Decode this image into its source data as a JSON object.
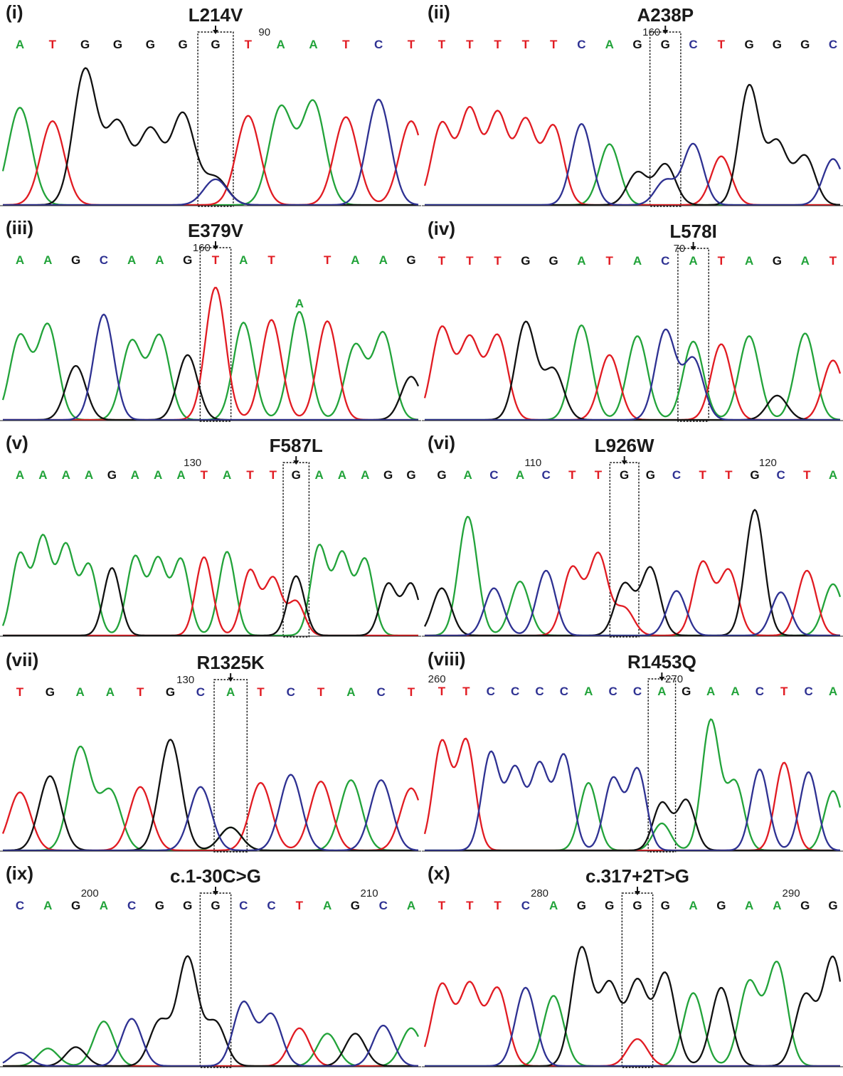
{
  "colors": {
    "A": "#22a33a",
    "T": "#e11b22",
    "G": "#111111",
    "C": "#2e3192"
  },
  "panels": [
    {
      "label": "(i)",
      "mutation": "L214V",
      "bases": [
        "A",
        "T",
        "G",
        "G",
        "G",
        "G",
        "G",
        "T",
        "A",
        "A",
        "T",
        "C",
        "T"
      ],
      "highlight": 6,
      "positions": [
        {
          "after": 7,
          "text": "90"
        }
      ],
      "heights": [
        0.72,
        0.62,
        1.0,
        0.6,
        0.55,
        0.67,
        0.2,
        0.66,
        0.72,
        0.76,
        0.65,
        0.78,
        0.62
      ],
      "secondary": [
        {
          "index": 6,
          "base": "C",
          "height": 0.19
        }
      ]
    },
    {
      "label": "(ii)",
      "mutation": "A238P",
      "bases": [
        "T",
        "T",
        "T",
        "T",
        "T",
        "C",
        "A",
        "G",
        "G",
        "C",
        "T",
        "G",
        "G",
        "G",
        "C"
      ],
      "highlight": 8,
      "positions": [
        {
          "after": 7,
          "text": "160"
        }
      ],
      "heights": [
        0.6,
        0.7,
        0.67,
        0.62,
        0.58,
        0.6,
        0.45,
        0.24,
        0.3,
        0.45,
        0.36,
        0.88,
        0.46,
        0.36,
        0.34
      ],
      "secondary": [
        {
          "index": 8,
          "base": "C",
          "height": 0.18
        }
      ]
    },
    {
      "label": "(iii)",
      "mutation": "E379V",
      "bases": [
        "A",
        "A",
        "G",
        "C",
        "A",
        "A",
        "G",
        "T",
        "A",
        "T",
        "",
        "T",
        "A",
        "A",
        "G"
      ],
      "highlight": 7,
      "positions": [
        {
          "after": 6,
          "text": "160"
        }
      ],
      "heights": [
        0.62,
        0.7,
        0.4,
        0.78,
        0.58,
        0.62,
        0.48,
        0.62,
        0.72,
        0.74,
        0,
        0.73,
        0.55,
        0.64,
        0.32
      ],
      "secondary": [
        {
          "index": 7,
          "base": "T",
          "height": 0.36
        }
      ],
      "extraCall": {
        "index": 10,
        "base": "A",
        "height": 0.8
      }
    },
    {
      "label": "(iv)",
      "mutation": "L578I",
      "bases": [
        "T",
        "T",
        "T",
        "G",
        "G",
        "A",
        "T",
        "A",
        "C",
        "A",
        "T",
        "A",
        "G",
        "A",
        "T"
      ],
      "highlight": 9,
      "positions": [
        {
          "after": 8,
          "text": "70"
        }
      ],
      "heights": [
        0.68,
        0.6,
        0.62,
        0.72,
        0.37,
        0.7,
        0.48,
        0.62,
        0.66,
        0.58,
        0.56,
        0.62,
        0.18,
        0.64,
        0.44
      ],
      "secondary": [
        {
          "index": 9,
          "base": "C",
          "height": 0.45
        }
      ]
    },
    {
      "label": "(v)",
      "mutation": "F587L",
      "bases": [
        "A",
        "A",
        "A",
        "A",
        "G",
        "A",
        "A",
        "A",
        "T",
        "A",
        "T",
        "T",
        "G",
        "A",
        "A",
        "A",
        "G",
        "G"
      ],
      "highlight": 12,
      "positions": [
        {
          "after": 7,
          "text": "130"
        }
      ],
      "heights": [
        0.6,
        0.72,
        0.66,
        0.52,
        0.5,
        0.58,
        0.56,
        0.56,
        0.58,
        0.62,
        0.48,
        0.42,
        0.44,
        0.66,
        0.6,
        0.56,
        0.38,
        0.38
      ],
      "secondary": [
        {
          "index": 12,
          "base": "T",
          "height": 0.25
        }
      ]
    },
    {
      "label": "(vi)",
      "mutation": "L926W",
      "bases": [
        "G",
        "A",
        "C",
        "A",
        "C",
        "T",
        "T",
        "G",
        "G",
        "C",
        "T",
        "T",
        "G",
        "C",
        "T",
        "A"
      ],
      "highlight": 7,
      "positions": [
        {
          "after": 3,
          "text": "110"
        },
        {
          "after": 12,
          "text": "120"
        }
      ],
      "heights": [
        0.35,
        0.88,
        0.35,
        0.4,
        0.48,
        0.5,
        0.6,
        0.38,
        0.5,
        0.33,
        0.54,
        0.48,
        0.93,
        0.32,
        0.48,
        0.38
      ],
      "secondary": [
        {
          "index": 7,
          "base": "T",
          "height": 0.2
        }
      ]
    },
    {
      "label": "(vii)",
      "mutation": "R1325K",
      "bases": [
        "T",
        "G",
        "A",
        "A",
        "T",
        "G",
        "C",
        "A",
        "T",
        "C",
        "T",
        "A",
        "C",
        "T"
      ],
      "highlight": 7,
      "positions": [
        {
          "after": 5,
          "text": "130"
        }
      ],
      "heights": [
        0.43,
        0.55,
        0.76,
        0.44,
        0.47,
        0.82,
        0.47,
        0.17,
        0.5,
        0.56,
        0.51,
        0.52,
        0.52,
        0.46
      ],
      "secondary": [
        {
          "index": 7,
          "base": "G",
          "height": 0.17
        }
      ]
    },
    {
      "label": "(viii)",
      "mutation": "R1453Q",
      "bases": [
        "T",
        "T",
        "C",
        "C",
        "C",
        "C",
        "A",
        "C",
        "C",
        "A",
        "G",
        "A",
        "A",
        "C",
        "T",
        "C",
        "A"
      ],
      "highlight": 9,
      "positions": [
        {
          "after": -1,
          "text": "260"
        },
        {
          "after": 9,
          "text": "270"
        }
      ],
      "heights": [
        0.8,
        0.81,
        0.72,
        0.6,
        0.63,
        0.7,
        0.5,
        0.53,
        0.6,
        0.2,
        0.37,
        0.96,
        0.5,
        0.6,
        0.65,
        0.58,
        0.44
      ],
      "secondary": [
        {
          "index": 9,
          "base": "G",
          "height": 0.35
        }
      ]
    },
    {
      "label": "(ix)",
      "mutation": "c.1-30C>G",
      "bases": [
        "C",
        "A",
        "G",
        "A",
        "C",
        "G",
        "G",
        "G",
        "C",
        "C",
        "T",
        "A",
        "G",
        "C",
        "A"
      ],
      "highlight": 7,
      "positions": [
        {
          "after": 2,
          "text": "200"
        },
        {
          "after": 12,
          "text": "210"
        }
      ],
      "heights": [
        0.1,
        0.13,
        0.14,
        0.33,
        0.35,
        0.33,
        0.8,
        0.32,
        0.47,
        0.38,
        0.28,
        0.24,
        0.24,
        0.3,
        0.28
      ],
      "secondary": []
    },
    {
      "label": "(x)",
      "mutation": "c.317+2T>G",
      "bases": [
        "T",
        "T",
        "T",
        "C",
        "A",
        "G",
        "G",
        "G",
        "G",
        "A",
        "G",
        "A",
        "A",
        "G",
        "G"
      ],
      "highlight": 7,
      "positions": [
        {
          "after": 3,
          "text": "280"
        },
        {
          "after": 12,
          "text": "290"
        }
      ],
      "heights": [
        0.6,
        0.6,
        0.57,
        0.58,
        0.52,
        0.87,
        0.6,
        0.62,
        0.68,
        0.54,
        0.58,
        0.62,
        0.76,
        0.52,
        0.8
      ],
      "secondary": [
        {
          "index": 7,
          "base": "T",
          "height": 0.2
        }
      ]
    }
  ]
}
